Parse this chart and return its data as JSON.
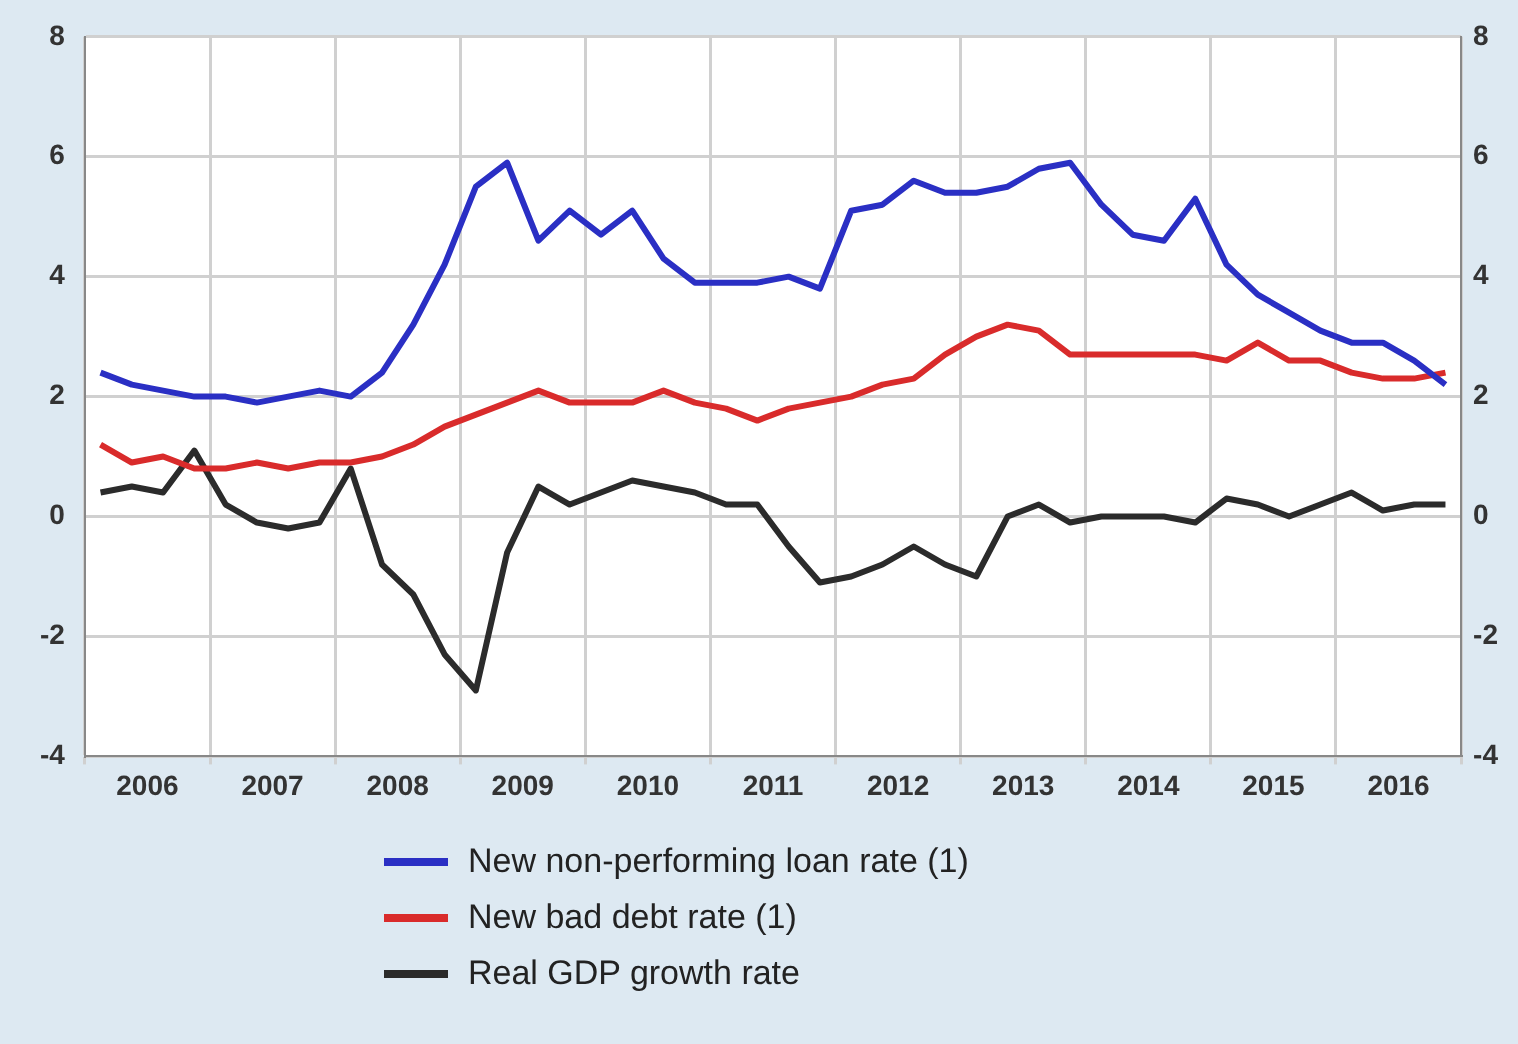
{
  "chart_data": {
    "type": "line",
    "grid": true,
    "legend": "bottom",
    "marker": "none",
    "line_style": "solid",
    "x": [
      2006.125,
      2006.375,
      2006.625,
      2006.875,
      2007.125,
      2007.375,
      2007.625,
      2007.875,
      2008.125,
      2008.375,
      2008.625,
      2008.875,
      2009.125,
      2009.375,
      2009.625,
      2009.875,
      2010.125,
      2010.375,
      2010.625,
      2010.875,
      2011.125,
      2011.375,
      2011.625,
      2011.875,
      2012.125,
      2012.375,
      2012.625,
      2012.875,
      2013.125,
      2013.375,
      2013.625,
      2013.875,
      2014.125,
      2014.375,
      2014.625,
      2014.875,
      2015.125,
      2015.375,
      2015.625,
      2015.875,
      2016.125,
      2016.375,
      2016.625,
      2016.875
    ],
    "xlim": [
      2006,
      2017
    ],
    "xticks": [
      {
        "value": 2006,
        "label": null
      },
      {
        "value": 2006.5,
        "label": "2006"
      },
      {
        "value": 2007,
        "label": null
      },
      {
        "value": 2007.5,
        "label": "2007"
      },
      {
        "value": 2008,
        "label": null
      },
      {
        "value": 2008.5,
        "label": "2008"
      },
      {
        "value": 2009,
        "label": null
      },
      {
        "value": 2009.5,
        "label": "2009"
      },
      {
        "value": 2010,
        "label": null
      },
      {
        "value": 2010.5,
        "label": "2010"
      },
      {
        "value": 2011,
        "label": null
      },
      {
        "value": 2011.5,
        "label": "2011"
      },
      {
        "value": 2012,
        "label": null
      },
      {
        "value": 2012.5,
        "label": "2012"
      },
      {
        "value": 2013,
        "label": null
      },
      {
        "value": 2013.5,
        "label": "2013"
      },
      {
        "value": 2014,
        "label": null
      },
      {
        "value": 2014.5,
        "label": "2014"
      },
      {
        "value": 2015,
        "label": null
      },
      {
        "value": 2015.5,
        "label": "2015"
      },
      {
        "value": 2016,
        "label": null
      },
      {
        "value": 2016.5,
        "label": "2016"
      },
      {
        "value": 2017,
        "label": null
      }
    ],
    "ylim": [
      -4,
      8
    ],
    "yticks": [
      -4,
      -2,
      0,
      2,
      4,
      6,
      8
    ],
    "y2lim": [
      -4,
      8
    ],
    "y2ticks": [
      -4,
      -2,
      0,
      2,
      4,
      6,
      8
    ],
    "series": [
      {
        "name": "New non-performing loan rate (1)",
        "color": "#2a2fc4",
        "values": [
          2.4,
          2.2,
          2.1,
          2.0,
          2.0,
          1.9,
          2.0,
          2.1,
          2.0,
          2.4,
          3.2,
          4.2,
          5.5,
          5.9,
          4.6,
          5.1,
          4.7,
          5.1,
          4.3,
          3.9,
          3.9,
          3.9,
          4.0,
          3.8,
          5.1,
          5.2,
          5.6,
          5.4,
          5.4,
          5.5,
          5.8,
          5.9,
          5.2,
          4.7,
          4.6,
          5.3,
          4.2,
          3.7,
          3.4,
          3.1,
          2.9,
          2.9,
          2.6,
          2.2
        ]
      },
      {
        "name": "New bad debt rate  (1)",
        "color": "#d92b2b",
        "values": [
          1.2,
          0.9,
          1.0,
          0.8,
          0.8,
          0.9,
          0.8,
          0.9,
          0.9,
          1.0,
          1.2,
          1.5,
          1.7,
          1.9,
          2.1,
          1.9,
          1.9,
          1.9,
          2.1,
          1.9,
          1.8,
          1.6,
          1.8,
          1.9,
          2.0,
          2.2,
          2.3,
          2.7,
          3.0,
          3.2,
          3.1,
          2.7,
          2.7,
          2.7,
          2.7,
          2.7,
          2.6,
          2.9,
          2.6,
          2.6,
          2.4,
          2.3,
          2.3,
          2.4
        ]
      },
      {
        "name": "Real GDP growth rate",
        "color": "#2b2b2b",
        "values": [
          0.4,
          0.5,
          0.4,
          1.1,
          0.2,
          -0.1,
          -0.2,
          -0.1,
          0.8,
          -0.8,
          -1.3,
          -2.3,
          -2.9,
          -0.6,
          0.5,
          0.2,
          0.4,
          0.6,
          0.5,
          0.4,
          0.2,
          0.2,
          -0.5,
          -1.1,
          -1.0,
          -0.8,
          -0.5,
          -0.8,
          -1.0,
          0.0,
          0.2,
          -0.1,
          0.0,
          0.0,
          0.0,
          -0.1,
          0.3,
          0.2,
          0.0,
          0.2,
          0.4,
          0.1,
          0.2,
          0.2
        ]
      }
    ]
  }
}
